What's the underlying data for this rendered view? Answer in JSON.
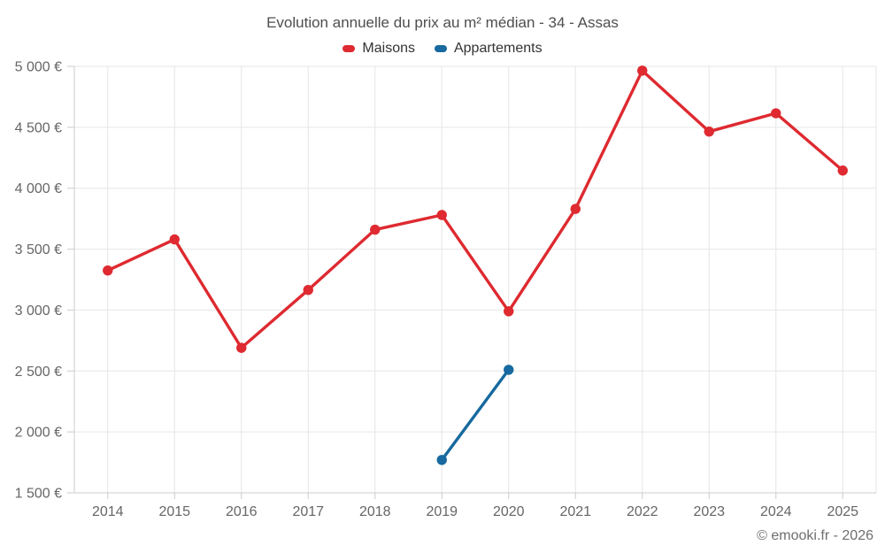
{
  "chart": {
    "title": "Evolution annuelle du prix au m² médian - 34 - Assas",
    "footer_credit": "© emooki.fr - 2026",
    "colors": {
      "maisons": "#de2a30",
      "appartements": "#17699f",
      "gridline": "#e6e6e6",
      "axis_line": "#cccccc",
      "tick_label_text": "#666666",
      "title_text": "#4e4e4e",
      "legend_text": "#333333"
    }
  },
  "chart_data": {
    "type": "line",
    "title": "Evolution annuelle du prix au m² médian - 34 - Assas",
    "x": [
      "2014",
      "2015",
      "2016",
      "2017",
      "2018",
      "2019",
      "2020",
      "2021",
      "2022",
      "2023",
      "2024",
      "2025"
    ],
    "series": [
      {
        "name": "Maisons",
        "color": "#de2a30",
        "x": [
          "2014",
          "2015",
          "2016",
          "2017",
          "2018",
          "2019",
          "2020",
          "2021",
          "2022",
          "2023",
          "2024",
          "2025"
        ],
        "values": [
          3325,
          3580,
          2690,
          3165,
          3660,
          3780,
          2990,
          3830,
          4965,
          4465,
          4615,
          4145
        ]
      },
      {
        "name": "Appartements",
        "color": "#17699f",
        "x": [
          "2019",
          "2020"
        ],
        "values": [
          1770,
          2510
        ]
      }
    ],
    "ylim": [
      1500,
      5000
    ],
    "yticks": {
      "values": [
        1500,
        2000,
        2500,
        3000,
        3500,
        4000,
        4500,
        5000
      ],
      "labels": [
        "1 500 €",
        "2 000 €",
        "2 500 €",
        "3 000 €",
        "3 500 €",
        "4 000 €",
        "4 500 €",
        "5 000 €"
      ]
    },
    "xlabel": "",
    "ylabel": "",
    "grid": true,
    "legend_position": "top-center",
    "marker": "circle"
  }
}
